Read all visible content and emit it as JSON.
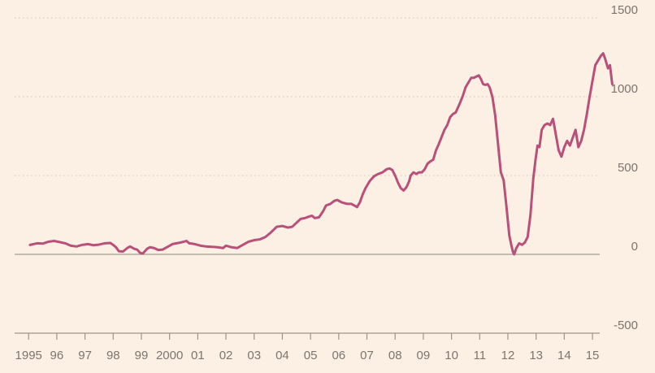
{
  "chart_data": {
    "type": "line",
    "title": "",
    "xlabel": "",
    "ylabel": "",
    "xlim": [
      1994.85,
      2015.2
    ],
    "ylim": [
      -500,
      1500
    ],
    "grid": true,
    "y_tick_values": [
      1500,
      1000,
      500,
      0,
      -500
    ],
    "y_tick_labels": [
      "1500",
      "1000",
      "500",
      "0",
      "-500"
    ],
    "x_ticks": [
      {
        "value": 1995,
        "label": "1995"
      },
      {
        "value": 1996,
        "label": "96"
      },
      {
        "value": 1997,
        "label": "97"
      },
      {
        "value": 1998,
        "label": "98"
      },
      {
        "value": 1999,
        "label": "99"
      },
      {
        "value": 2000,
        "label": "2000"
      },
      {
        "value": 2001,
        "label": "01"
      },
      {
        "value": 2002,
        "label": "02"
      },
      {
        "value": 2003,
        "label": "03"
      },
      {
        "value": 2004,
        "label": "04"
      },
      {
        "value": 2005,
        "label": "05"
      },
      {
        "value": 2006,
        "label": "06"
      },
      {
        "value": 2007,
        "label": "07"
      },
      {
        "value": 2008,
        "label": "08"
      },
      {
        "value": 2009,
        "label": "09"
      },
      {
        "value": 2010,
        "label": "10"
      },
      {
        "value": 2011,
        "label": "11"
      },
      {
        "value": 2012,
        "label": "12"
      },
      {
        "value": 2013,
        "label": "13"
      },
      {
        "value": 2014,
        "label": "14"
      },
      {
        "value": 2015,
        "label": "15"
      }
    ],
    "series": [
      {
        "color": "#b8507a",
        "points": [
          [
            1995.05,
            60
          ],
          [
            1995.3,
            70
          ],
          [
            1995.5,
            68
          ],
          [
            1995.7,
            80
          ],
          [
            1995.9,
            85
          ],
          [
            1996.1,
            78
          ],
          [
            1996.3,
            70
          ],
          [
            1996.5,
            55
          ],
          [
            1996.7,
            50
          ],
          [
            1996.9,
            60
          ],
          [
            1997.1,
            65
          ],
          [
            1997.3,
            58
          ],
          [
            1997.5,
            62
          ],
          [
            1997.7,
            70
          ],
          [
            1997.9,
            72
          ],
          [
            1998.0,
            60
          ],
          [
            1998.1,
            45
          ],
          [
            1998.2,
            20
          ],
          [
            1998.35,
            18
          ],
          [
            1998.5,
            40
          ],
          [
            1998.6,
            50
          ],
          [
            1998.75,
            35
          ],
          [
            1998.85,
            30
          ],
          [
            1998.95,
            10
          ],
          [
            1999.05,
            5
          ],
          [
            1999.2,
            35
          ],
          [
            1999.3,
            45
          ],
          [
            1999.45,
            40
          ],
          [
            1999.6,
            28
          ],
          [
            1999.75,
            30
          ],
          [
            1999.9,
            45
          ],
          [
            2000.1,
            65
          ],
          [
            2000.3,
            72
          ],
          [
            2000.5,
            80
          ],
          [
            2000.6,
            85
          ],
          [
            2000.7,
            70
          ],
          [
            2000.9,
            65
          ],
          [
            2001.1,
            55
          ],
          [
            2001.3,
            50
          ],
          [
            2001.5,
            48
          ],
          [
            2001.7,
            45
          ],
          [
            2001.9,
            40
          ],
          [
            2002.0,
            55
          ],
          [
            2002.2,
            45
          ],
          [
            2002.4,
            40
          ],
          [
            2002.6,
            60
          ],
          [
            2002.8,
            80
          ],
          [
            2003.0,
            90
          ],
          [
            2003.2,
            95
          ],
          [
            2003.4,
            110
          ],
          [
            2003.6,
            140
          ],
          [
            2003.8,
            175
          ],
          [
            2004.0,
            180
          ],
          [
            2004.2,
            170
          ],
          [
            2004.35,
            175
          ],
          [
            2004.5,
            200
          ],
          [
            2004.65,
            225
          ],
          [
            2004.8,
            230
          ],
          [
            2004.95,
            240
          ],
          [
            2005.05,
            245
          ],
          [
            2005.15,
            230
          ],
          [
            2005.3,
            235
          ],
          [
            2005.45,
            275
          ],
          [
            2005.55,
            310
          ],
          [
            2005.7,
            320
          ],
          [
            2005.85,
            340
          ],
          [
            2005.95,
            345
          ],
          [
            2006.1,
            330
          ],
          [
            2006.3,
            320
          ],
          [
            2006.45,
            320
          ],
          [
            2006.55,
            310
          ],
          [
            2006.65,
            300
          ],
          [
            2006.75,
            330
          ],
          [
            2006.85,
            380
          ],
          [
            2006.95,
            420
          ],
          [
            2007.1,
            465
          ],
          [
            2007.25,
            495
          ],
          [
            2007.4,
            510
          ],
          [
            2007.55,
            520
          ],
          [
            2007.7,
            540
          ],
          [
            2007.8,
            545
          ],
          [
            2007.9,
            535
          ],
          [
            2008.0,
            500
          ],
          [
            2008.1,
            455
          ],
          [
            2008.2,
            420
          ],
          [
            2008.3,
            405
          ],
          [
            2008.4,
            425
          ],
          [
            2008.5,
            465
          ],
          [
            2008.55,
            500
          ],
          [
            2008.65,
            520
          ],
          [
            2008.75,
            510
          ],
          [
            2008.85,
            520
          ],
          [
            2008.95,
            520
          ],
          [
            2009.05,
            540
          ],
          [
            2009.15,
            575
          ],
          [
            2009.25,
            590
          ],
          [
            2009.35,
            600
          ],
          [
            2009.45,
            660
          ],
          [
            2009.55,
            700
          ],
          [
            2009.65,
            745
          ],
          [
            2009.75,
            790
          ],
          [
            2009.85,
            820
          ],
          [
            2009.95,
            870
          ],
          [
            2010.05,
            890
          ],
          [
            2010.15,
            900
          ],
          [
            2010.3,
            960
          ],
          [
            2010.4,
            1005
          ],
          [
            2010.5,
            1060
          ],
          [
            2010.6,
            1090
          ],
          [
            2010.7,
            1120
          ],
          [
            2010.8,
            1120
          ],
          [
            2010.9,
            1130
          ],
          [
            2010.97,
            1135
          ],
          [
            2011.05,
            1110
          ],
          [
            2011.12,
            1080
          ],
          [
            2011.2,
            1075
          ],
          [
            2011.28,
            1080
          ],
          [
            2011.35,
            1060
          ],
          [
            2011.45,
            1000
          ],
          [
            2011.55,
            880
          ],
          [
            2011.65,
            700
          ],
          [
            2011.75,
            520
          ],
          [
            2011.85,
            470
          ],
          [
            2011.95,
            300
          ],
          [
            2012.05,
            120
          ],
          [
            2012.12,
            60
          ],
          [
            2012.18,
            15
          ],
          [
            2012.22,
            0
          ],
          [
            2012.3,
            40
          ],
          [
            2012.4,
            70
          ],
          [
            2012.5,
            60
          ],
          [
            2012.6,
            75
          ],
          [
            2012.7,
            110
          ],
          [
            2012.8,
            250
          ],
          [
            2012.9,
            480
          ],
          [
            2012.98,
            600
          ],
          [
            2013.05,
            690
          ],
          [
            2013.12,
            680
          ],
          [
            2013.2,
            790
          ],
          [
            2013.3,
            820
          ],
          [
            2013.4,
            830
          ],
          [
            2013.5,
            820
          ],
          [
            2013.6,
            860
          ],
          [
            2013.7,
            760
          ],
          [
            2013.8,
            660
          ],
          [
            2013.9,
            620
          ],
          [
            2014.0,
            680
          ],
          [
            2014.1,
            720
          ],
          [
            2014.2,
            690
          ],
          [
            2014.3,
            740
          ],
          [
            2014.4,
            790
          ],
          [
            2014.5,
            680
          ],
          [
            2014.6,
            720
          ],
          [
            2014.7,
            790
          ],
          [
            2014.8,
            890
          ],
          [
            2014.9,
            1000
          ],
          [
            2015.0,
            1100
          ],
          [
            2015.1,
            1200
          ],
          [
            2015.2,
            1230
          ],
          [
            2015.3,
            1260
          ],
          [
            2015.38,
            1275
          ],
          [
            2015.45,
            1240
          ],
          [
            2015.55,
            1180
          ],
          [
            2015.62,
            1200
          ],
          [
            2015.7,
            1080
          ]
        ]
      }
    ]
  }
}
